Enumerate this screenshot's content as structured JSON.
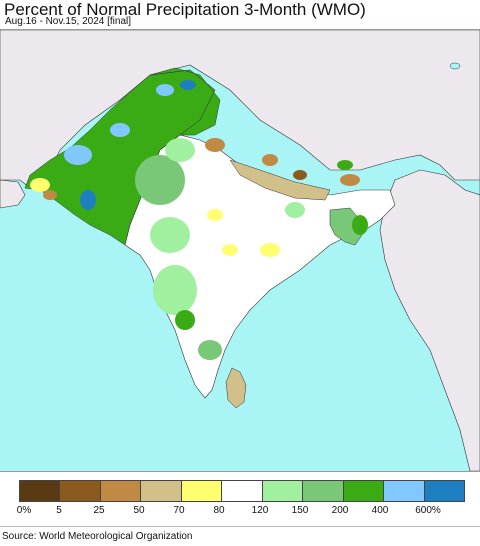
{
  "header": {
    "title": "Percent of Normal Precipitation 3-Month (WMO)",
    "subtitle": "Aug.16 - Nov.15, 2024 [final]"
  },
  "legend": {
    "labels": [
      "0%",
      "5",
      "25",
      "50",
      "70",
      "80",
      "120",
      "150",
      "200",
      "400",
      "600%"
    ],
    "colors": [
      "#5a3a12",
      "#8b5a1e",
      "#c08a45",
      "#d2c08a",
      "#ffff70",
      "#ffffff",
      "#a0f0a0",
      "#78c878",
      "#3aab14",
      "#80c8ff",
      "#1e7fc0"
    ]
  },
  "footer": {
    "source": "Source: World Meteorological Organization"
  },
  "map": {
    "ocean_color": "#a9f4f4",
    "outside_land_color": "#ede8ee",
    "region_colors": {
      "dry_dark": "#8b5a1e",
      "dry_mid": "#c08a45",
      "dry_light": "#d2c08a",
      "below": "#ffff70",
      "normal": "#ffffff",
      "above_light": "#a0f0a0",
      "above_mid": "#78c878",
      "above_strong": "#3aab14",
      "very_wet": "#80c8ff",
      "extreme_wet": "#1e7fc0"
    }
  }
}
